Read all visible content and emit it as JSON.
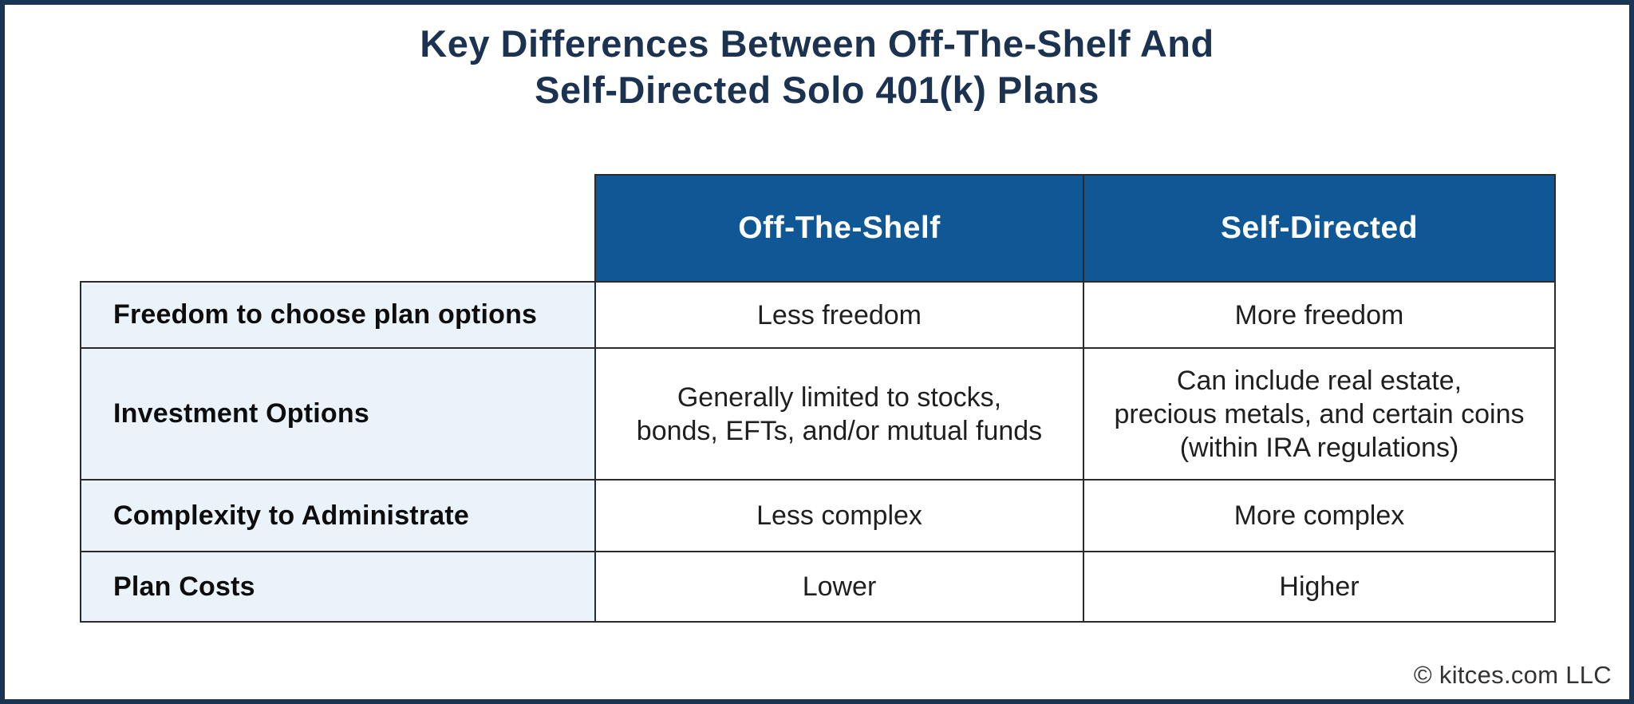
{
  "page": {
    "title_line1": "Key Differences Between Off-The-Shelf And",
    "title_line2": "Self-Directed Solo 401(k) Plans",
    "copyright": "© kitces.com LLC"
  },
  "colors": {
    "outer_border_navy": "#1a3553",
    "title_navy": "#1b3351",
    "header_blue": "#0f5795",
    "header_text": "#ffffff",
    "label_cell_bg": "#eaf2fa",
    "cell_border": "#2b2b2b",
    "body_text": "#1f1f1f"
  },
  "table": {
    "column_headers": [
      "Off-The-Shelf",
      "Self-Directed"
    ],
    "rows": [
      {
        "label": "Freedom to choose plan options",
        "off_the_shelf": "Less freedom",
        "self_directed": "More freedom"
      },
      {
        "label": "Investment Options",
        "off_the_shelf": "Generally limited to stocks,\nbonds, EFTs, and/or mutual funds",
        "self_directed": "Can include real estate,\nprecious metals, and certain coins\n(within IRA regulations)"
      },
      {
        "label": "Complexity to Administrate",
        "off_the_shelf": "Less complex",
        "self_directed": "More complex"
      },
      {
        "label": "Plan Costs",
        "off_the_shelf": "Lower",
        "self_directed": "Higher"
      }
    ]
  },
  "chart_data": {
    "type": "table",
    "title": "Key Differences Between Off-The-Shelf And Self-Directed Solo 401(k) Plans",
    "columns": [
      "",
      "Off-The-Shelf",
      "Self-Directed"
    ],
    "rows": [
      [
        "Freedom to choose plan options",
        "Less freedom",
        "More freedom"
      ],
      [
        "Investment Options",
        "Generally limited to stocks, bonds, EFTs, and/or mutual funds",
        "Can include real estate, precious metals, and certain coins (within IRA regulations)"
      ],
      [
        "Complexity to Administrate",
        "Less complex",
        "More complex"
      ],
      [
        "Plan Costs",
        "Lower",
        "Higher"
      ]
    ],
    "footer": "© kitces.com LLC"
  }
}
